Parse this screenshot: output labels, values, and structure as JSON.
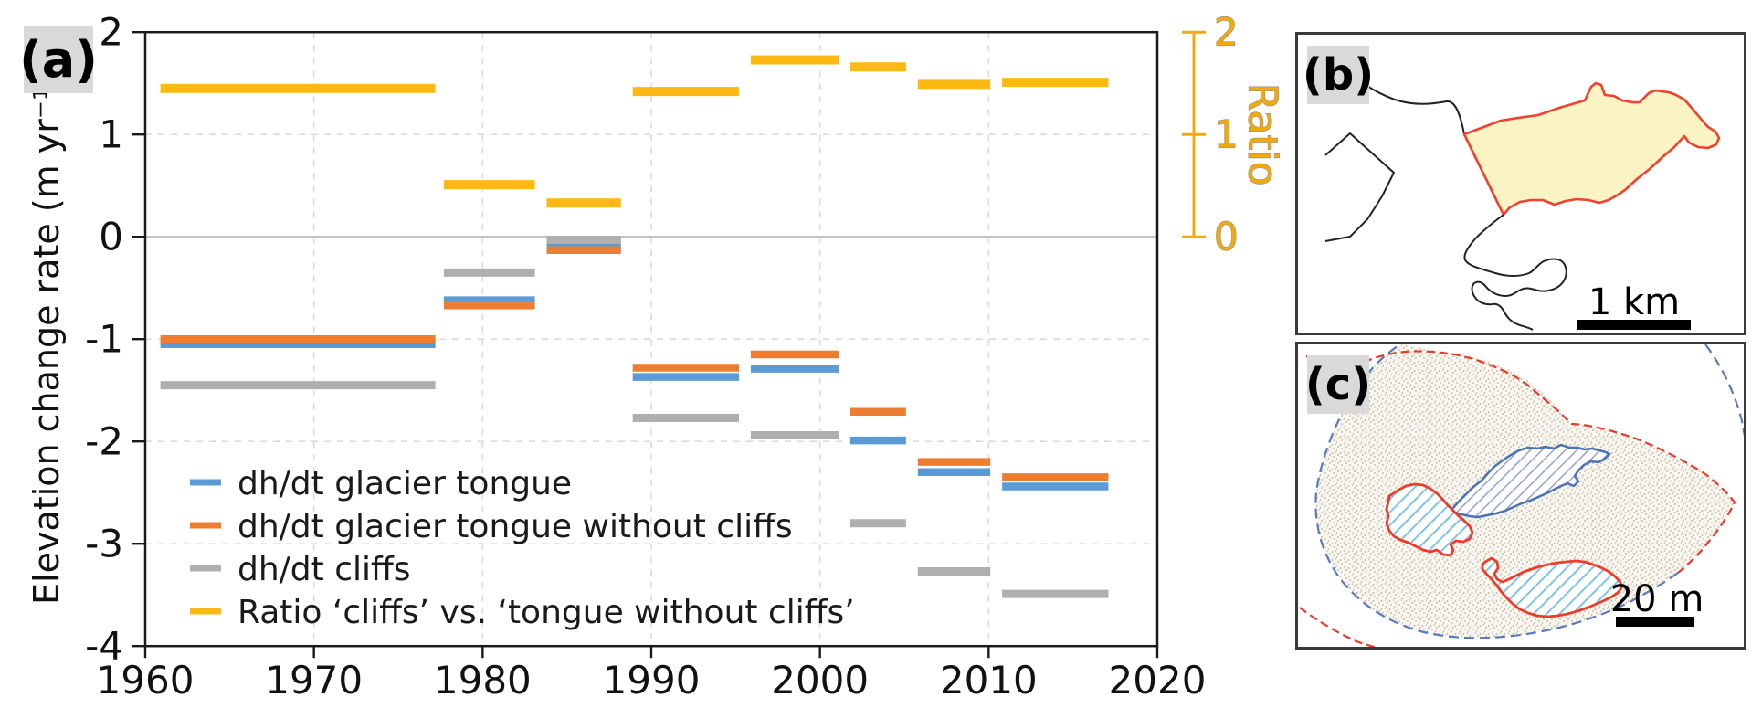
{
  "figure": {
    "background": "#FFFFFF"
  },
  "panels": {
    "a": {
      "tag": "(a)"
    },
    "b": {
      "tag": "(b)",
      "scale_bar_label": "1 km",
      "glacier_tongue_fill": "#FAF3C3",
      "glacier_tongue_outline": "#F0402E",
      "glacier_margin_color": "#222222"
    },
    "c": {
      "tag": "(c)",
      "scale_bar_label": "20 m",
      "extent_red_dashed": "#E8392B",
      "extent_blue_dashed": "#5B79C0",
      "cliff_outline_blue": "#4A72B8",
      "cliff_outline_red": "#F03B2B",
      "hatch_blue": "#95A3C2",
      "hatch_sky": "#7EC3E8",
      "stipple_dot_color": "#B5AF99"
    }
  },
  "chart_data": {
    "type": "line",
    "style": "horizontal-interval-segments",
    "title": "",
    "xlabel": "",
    "ylabel": "Elevation change rate (m yr⁻¹)",
    "y2label": "Ratio",
    "xlim": [
      1960,
      2020
    ],
    "ylim": [
      -4,
      2
    ],
    "y2lim": [
      0,
      2
    ],
    "x_ticks": [
      1960,
      1970,
      1980,
      1990,
      2000,
      2010,
      2020
    ],
    "y_ticks": [
      2,
      1,
      0,
      -1,
      -2,
      -3,
      -4
    ],
    "y2_ticks": [
      2,
      1,
      0
    ],
    "grid": true,
    "legend_position": "lower left",
    "axis_color": "#1A1A1A",
    "ratio_axis_color": "#F2A90C",
    "periods": [
      [
        1960.9,
        1977.2
      ],
      [
        1977.7,
        1983.1
      ],
      [
        1983.8,
        1988.2
      ],
      [
        1988.9,
        1995.2
      ],
      [
        1995.9,
        2001.1
      ],
      [
        2001.8,
        2005.1
      ],
      [
        2005.8,
        2010.1
      ],
      [
        2010.8,
        2017.1
      ]
    ],
    "series": [
      {
        "name": "dh/dt glacier tongue",
        "color": "#5B9BD5",
        "axis": "left",
        "values": [
          -1.05,
          -0.62,
          -0.09,
          -1.37,
          -1.29,
          -1.99,
          -2.3,
          -2.44
        ]
      },
      {
        "name": "dh/dt glacier tongue without cliffs",
        "color": "#ED7D31",
        "axis": "left",
        "values": [
          -1.0,
          -0.67,
          -0.13,
          -1.28,
          -1.15,
          -1.71,
          -2.2,
          -2.35
        ]
      },
      {
        "name": "dh/dt cliffs",
        "color": "#AFAFAF",
        "axis": "left",
        "values": [
          -1.45,
          -0.35,
          -0.03,
          -1.77,
          -1.94,
          -2.8,
          -3.27,
          -3.49
        ]
      },
      {
        "name": "Ratio ‘cliffs’ vs. ‘tongue without cliffs’",
        "color": "#FDB913",
        "axis": "right",
        "values": [
          1.45,
          0.51,
          0.33,
          1.42,
          1.73,
          1.66,
          1.49,
          1.51
        ]
      }
    ]
  }
}
